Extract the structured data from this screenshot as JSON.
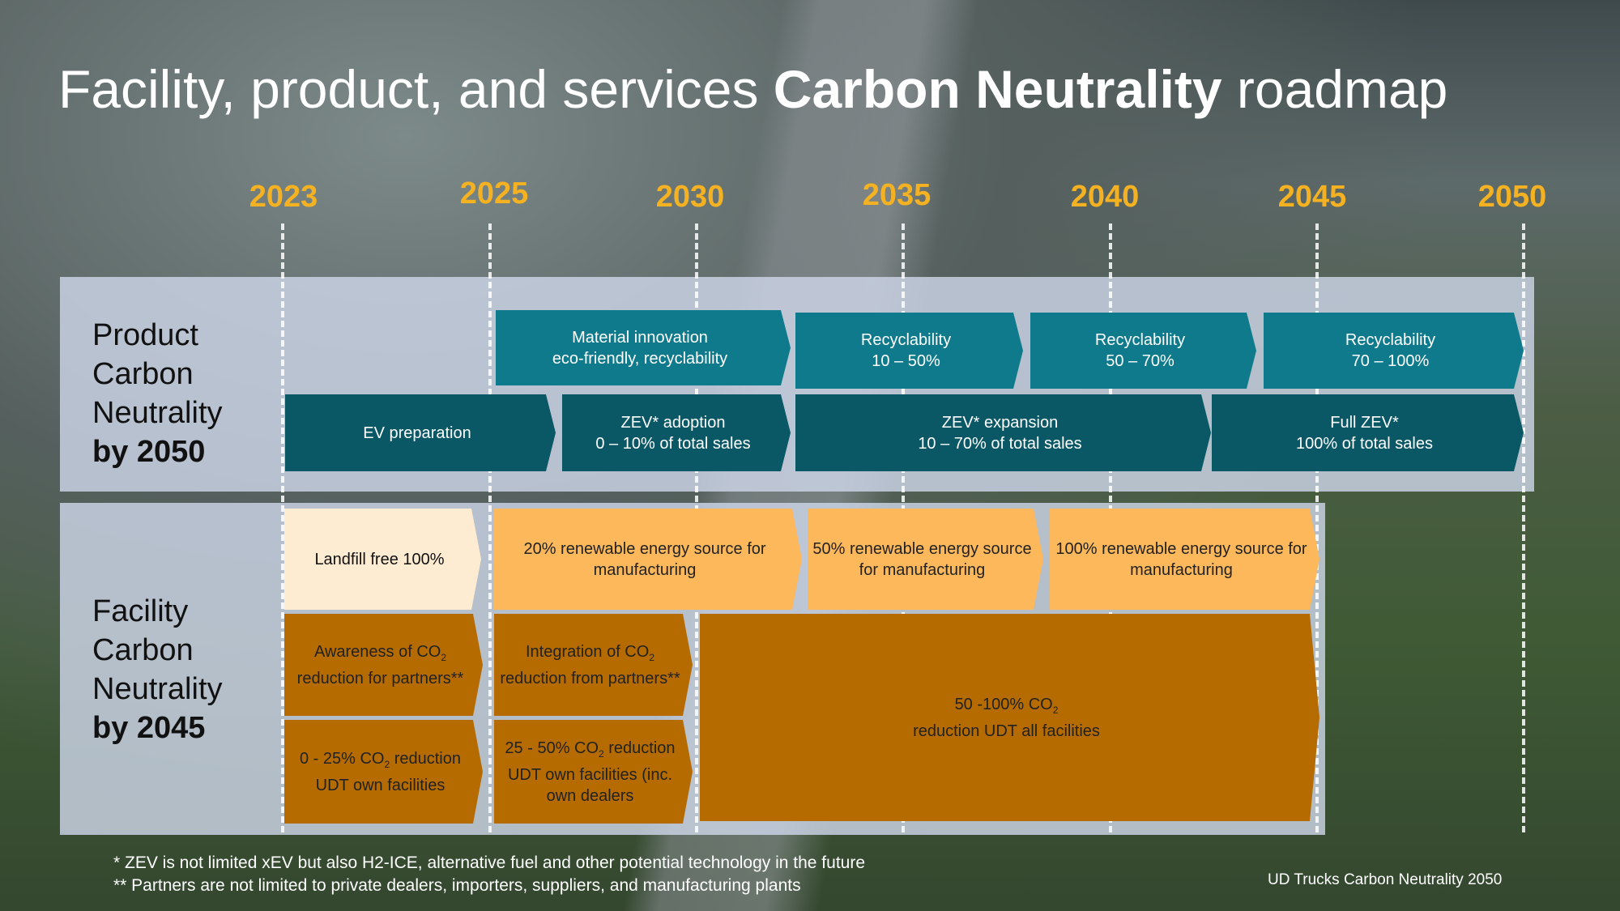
{
  "title": {
    "prefix": "Facility, product, and services ",
    "bold": "Carbon Neutrality",
    "suffix": " roadmap"
  },
  "years": [
    "2023",
    "2025",
    "2030",
    "2035",
    "2040",
    "2045",
    "2050"
  ],
  "product": {
    "label": [
      "Product",
      "Carbon",
      "Neutrality",
      "by 2050"
    ],
    "material": [
      "Material innovation",
      "eco-friendly, recyclability"
    ],
    "recyc1": [
      "Recyclability",
      "10 – 50%"
    ],
    "recyc2": [
      "Recyclability",
      "50 – 70%"
    ],
    "recyc3": [
      "Recyclability",
      "70 – 100%"
    ],
    "ev_prep": "EV preparation",
    "zev_adopt": [
      "ZEV* adoption",
      "0 – 10% of total sales"
    ],
    "zev_exp": [
      "ZEV* expansion",
      "10 – 70% of total sales"
    ],
    "full_zev": [
      "Full ZEV*",
      "100% of total sales"
    ]
  },
  "facility": {
    "label": [
      "Facility",
      "Carbon",
      "Neutrality",
      "by 2045"
    ],
    "landfill": "Landfill free 100%",
    "ren20": "20% renewable energy source for manufacturing",
    "ren50": "50% renewable energy source for manufacturing",
    "ren100": "100% renewable energy source for manufacturing",
    "awareness": {
      "pre": "Awareness of CO",
      "sub": "2",
      "post": " reduction for partners**"
    },
    "integration": {
      "pre": "Integration of CO",
      "sub": "2",
      "post": " reduction from partners**"
    },
    "own0_25": {
      "pre": "0 - 25% CO",
      "sub": "2",
      "post": " reduction UDT own facilities"
    },
    "own25_50": {
      "pre": "25 - 50% CO",
      "sub": "2",
      "post": " reduction UDT own facilities (inc. own dealers"
    },
    "all50_100": {
      "pre": "50 -100% CO",
      "sub": "2",
      "post": "reduction UDT all facilities"
    }
  },
  "footnotes": [
    "* ZEV is not limited xEV but also H2-ICE, alternative fuel and other potential technology in the future",
    "** Partners are not limited to private dealers, importers, suppliers, and manufacturing plants"
  ],
  "caption": "UD Trucks Carbon Neutrality 2050"
}
